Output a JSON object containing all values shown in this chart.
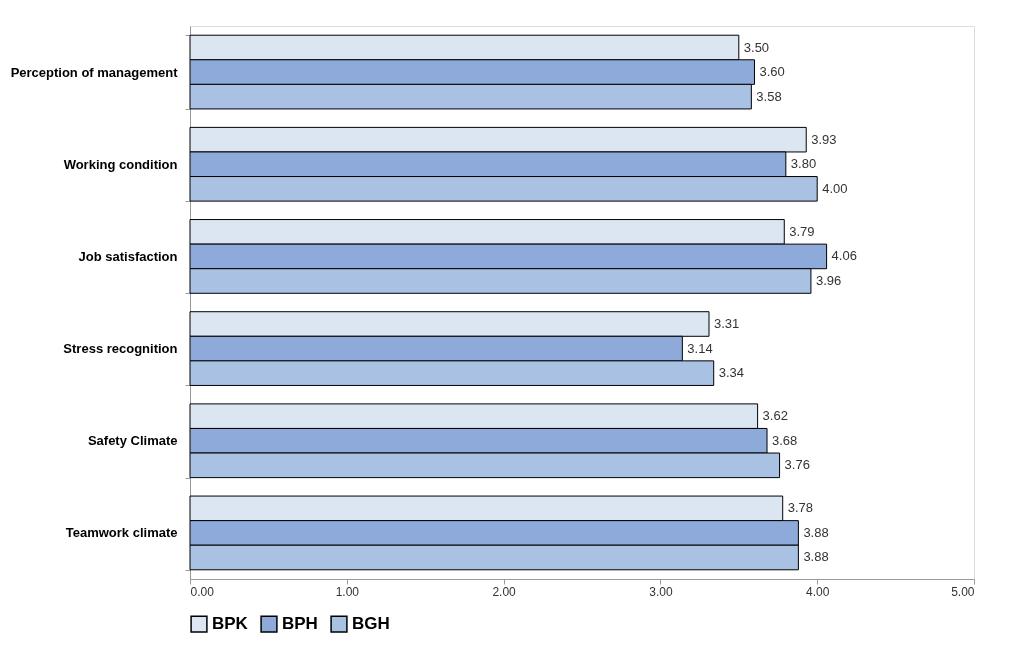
{
  "chart_data": {
    "type": "bar",
    "orientation": "horizontal",
    "categories": [
      "Perception of management",
      "Working condition",
      "Job satisfaction",
      "Stress recognition",
      "Safety Climate",
      "Teamwork climate"
    ],
    "series": [
      {
        "name": "BPK",
        "color": "#dce6f2",
        "values": [
          3.5,
          3.93,
          3.79,
          3.31,
          3.62,
          3.78
        ],
        "value_labels": [
          "3.50",
          "3.93",
          "3.79",
          "3.31",
          "3.62",
          "3.78"
        ]
      },
      {
        "name": "BPH",
        "color": "#8eaadb",
        "values": [
          3.6,
          3.8,
          4.06,
          3.14,
          3.68,
          3.88
        ],
        "value_labels": [
          "3.60",
          "3.80",
          "4.06",
          "3.14",
          "3.68",
          "3.88"
        ]
      },
      {
        "name": "BGH",
        "color": "#a9c1e3",
        "values": [
          3.58,
          4.0,
          3.96,
          3.34,
          3.76,
          3.88
        ],
        "value_labels": [
          "3.58",
          "4.00",
          "3.96",
          "3.34",
          "3.76",
          "3.88"
        ]
      }
    ],
    "xlim": [
      0,
      5
    ],
    "xticks": [
      {
        "value": 0,
        "label": "0.00"
      },
      {
        "value": 1,
        "label": "1.00"
      },
      {
        "value": 2,
        "label": "2.00"
      },
      {
        "value": 3,
        "label": "3.00"
      },
      {
        "value": 4,
        "label": "4.00"
      },
      {
        "value": 5,
        "label": "5.00"
      }
    ],
    "grid": false,
    "legend": "bottom"
  }
}
